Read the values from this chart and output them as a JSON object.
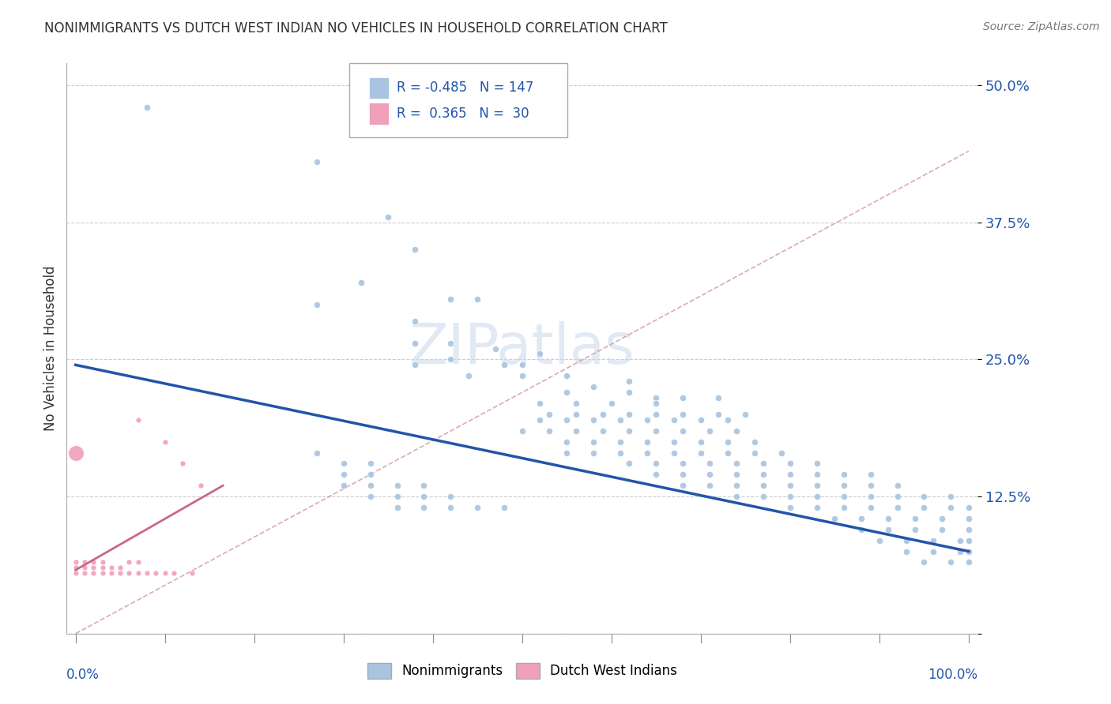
{
  "title": "NONIMMIGRANTS VS DUTCH WEST INDIAN NO VEHICLES IN HOUSEHOLD CORRELATION CHART",
  "source": "Source: ZipAtlas.com",
  "ylabel": "No Vehicles in Household",
  "blue_color": "#a8c4e0",
  "pink_color": "#f0a0b8",
  "blue_line_color": "#2255aa",
  "pink_line_color": "#cc6688",
  "dashed_line_color": "#cc8888",
  "grid_color": "#cccccc",
  "watermark": "ZIPatlas",
  "blue_scatter": [
    [
      0.08,
      0.48
    ],
    [
      0.27,
      0.43
    ],
    [
      0.35,
      0.38
    ],
    [
      0.38,
      0.35
    ],
    [
      0.32,
      0.32
    ],
    [
      0.42,
      0.305
    ],
    [
      0.45,
      0.305
    ],
    [
      0.27,
      0.3
    ],
    [
      0.38,
      0.285
    ],
    [
      0.42,
      0.265
    ],
    [
      0.38,
      0.265
    ],
    [
      0.42,
      0.25
    ],
    [
      0.38,
      0.245
    ],
    [
      0.44,
      0.235
    ],
    [
      0.47,
      0.26
    ],
    [
      0.48,
      0.245
    ],
    [
      0.5,
      0.245
    ],
    [
      0.52,
      0.255
    ],
    [
      0.5,
      0.235
    ],
    [
      0.55,
      0.235
    ],
    [
      0.55,
      0.22
    ],
    [
      0.58,
      0.225
    ],
    [
      0.62,
      0.23
    ],
    [
      0.62,
      0.22
    ],
    [
      0.65,
      0.215
    ],
    [
      0.52,
      0.21
    ],
    [
      0.56,
      0.21
    ],
    [
      0.6,
      0.21
    ],
    [
      0.65,
      0.21
    ],
    [
      0.68,
      0.215
    ],
    [
      0.72,
      0.215
    ],
    [
      0.53,
      0.2
    ],
    [
      0.56,
      0.2
    ],
    [
      0.59,
      0.2
    ],
    [
      0.62,
      0.2
    ],
    [
      0.65,
      0.2
    ],
    [
      0.68,
      0.2
    ],
    [
      0.72,
      0.2
    ],
    [
      0.75,
      0.2
    ],
    [
      0.52,
      0.195
    ],
    [
      0.55,
      0.195
    ],
    [
      0.58,
      0.195
    ],
    [
      0.61,
      0.195
    ],
    [
      0.64,
      0.195
    ],
    [
      0.67,
      0.195
    ],
    [
      0.7,
      0.195
    ],
    [
      0.73,
      0.195
    ],
    [
      0.5,
      0.185
    ],
    [
      0.53,
      0.185
    ],
    [
      0.56,
      0.185
    ],
    [
      0.59,
      0.185
    ],
    [
      0.62,
      0.185
    ],
    [
      0.65,
      0.185
    ],
    [
      0.68,
      0.185
    ],
    [
      0.71,
      0.185
    ],
    [
      0.74,
      0.185
    ],
    [
      0.55,
      0.175
    ],
    [
      0.58,
      0.175
    ],
    [
      0.61,
      0.175
    ],
    [
      0.64,
      0.175
    ],
    [
      0.67,
      0.175
    ],
    [
      0.7,
      0.175
    ],
    [
      0.73,
      0.175
    ],
    [
      0.76,
      0.175
    ],
    [
      0.55,
      0.165
    ],
    [
      0.58,
      0.165
    ],
    [
      0.61,
      0.165
    ],
    [
      0.64,
      0.165
    ],
    [
      0.67,
      0.165
    ],
    [
      0.7,
      0.165
    ],
    [
      0.73,
      0.165
    ],
    [
      0.76,
      0.165
    ],
    [
      0.79,
      0.165
    ],
    [
      0.62,
      0.155
    ],
    [
      0.65,
      0.155
    ],
    [
      0.68,
      0.155
    ],
    [
      0.71,
      0.155
    ],
    [
      0.74,
      0.155
    ],
    [
      0.77,
      0.155
    ],
    [
      0.8,
      0.155
    ],
    [
      0.83,
      0.155
    ],
    [
      0.65,
      0.145
    ],
    [
      0.68,
      0.145
    ],
    [
      0.71,
      0.145
    ],
    [
      0.74,
      0.145
    ],
    [
      0.77,
      0.145
    ],
    [
      0.8,
      0.145
    ],
    [
      0.83,
      0.145
    ],
    [
      0.86,
      0.145
    ],
    [
      0.89,
      0.145
    ],
    [
      0.68,
      0.135
    ],
    [
      0.71,
      0.135
    ],
    [
      0.74,
      0.135
    ],
    [
      0.77,
      0.135
    ],
    [
      0.8,
      0.135
    ],
    [
      0.83,
      0.135
    ],
    [
      0.86,
      0.135
    ],
    [
      0.89,
      0.135
    ],
    [
      0.92,
      0.135
    ],
    [
      0.74,
      0.125
    ],
    [
      0.77,
      0.125
    ],
    [
      0.8,
      0.125
    ],
    [
      0.83,
      0.125
    ],
    [
      0.86,
      0.125
    ],
    [
      0.89,
      0.125
    ],
    [
      0.92,
      0.125
    ],
    [
      0.95,
      0.125
    ],
    [
      0.98,
      0.125
    ],
    [
      0.8,
      0.115
    ],
    [
      0.83,
      0.115
    ],
    [
      0.86,
      0.115
    ],
    [
      0.89,
      0.115
    ],
    [
      0.92,
      0.115
    ],
    [
      0.95,
      0.115
    ],
    [
      0.98,
      0.115
    ],
    [
      1.0,
      0.115
    ],
    [
      0.85,
      0.105
    ],
    [
      0.88,
      0.105
    ],
    [
      0.91,
      0.105
    ],
    [
      0.94,
      0.105
    ],
    [
      0.97,
      0.105
    ],
    [
      1.0,
      0.105
    ],
    [
      0.88,
      0.095
    ],
    [
      0.91,
      0.095
    ],
    [
      0.94,
      0.095
    ],
    [
      0.97,
      0.095
    ],
    [
      1.0,
      0.095
    ],
    [
      0.9,
      0.085
    ],
    [
      0.93,
      0.085
    ],
    [
      0.96,
      0.085
    ],
    [
      0.99,
      0.085
    ],
    [
      1.0,
      0.085
    ],
    [
      0.93,
      0.075
    ],
    [
      0.96,
      0.075
    ],
    [
      0.99,
      0.075
    ],
    [
      1.0,
      0.075
    ],
    [
      0.95,
      0.065
    ],
    [
      0.98,
      0.065
    ],
    [
      1.0,
      0.065
    ],
    [
      0.27,
      0.165
    ],
    [
      0.3,
      0.155
    ],
    [
      0.33,
      0.155
    ],
    [
      0.3,
      0.145
    ],
    [
      0.33,
      0.145
    ],
    [
      0.3,
      0.135
    ],
    [
      0.33,
      0.135
    ],
    [
      0.36,
      0.135
    ],
    [
      0.39,
      0.135
    ],
    [
      0.33,
      0.125
    ],
    [
      0.36,
      0.125
    ],
    [
      0.39,
      0.125
    ],
    [
      0.42,
      0.125
    ],
    [
      0.36,
      0.115
    ],
    [
      0.39,
      0.115
    ],
    [
      0.42,
      0.115
    ],
    [
      0.45,
      0.115
    ],
    [
      0.48,
      0.115
    ]
  ],
  "pink_scatter": [
    [
      0.0,
      0.055
    ],
    [
      0.0,
      0.06
    ],
    [
      0.0,
      0.065
    ],
    [
      0.01,
      0.055
    ],
    [
      0.01,
      0.06
    ],
    [
      0.01,
      0.065
    ],
    [
      0.02,
      0.055
    ],
    [
      0.02,
      0.06
    ],
    [
      0.02,
      0.065
    ],
    [
      0.03,
      0.055
    ],
    [
      0.03,
      0.06
    ],
    [
      0.03,
      0.065
    ],
    [
      0.04,
      0.055
    ],
    [
      0.04,
      0.06
    ],
    [
      0.05,
      0.055
    ],
    [
      0.05,
      0.06
    ],
    [
      0.06,
      0.055
    ],
    [
      0.06,
      0.065
    ],
    [
      0.07,
      0.055
    ],
    [
      0.07,
      0.065
    ],
    [
      0.08,
      0.055
    ],
    [
      0.09,
      0.055
    ],
    [
      0.1,
      0.055
    ],
    [
      0.11,
      0.055
    ],
    [
      0.13,
      0.055
    ],
    [
      0.0,
      0.165
    ],
    [
      0.07,
      0.195
    ],
    [
      0.1,
      0.175
    ],
    [
      0.12,
      0.155
    ],
    [
      0.14,
      0.135
    ]
  ],
  "blue_size": 35,
  "pink_size_small": 25,
  "pink_size_large": 200,
  "blue_line": [
    [
      0.0,
      0.245
    ],
    [
      1.0,
      0.075
    ]
  ],
  "pink_line": [
    [
      0.0,
      0.058
    ],
    [
      0.165,
      0.135
    ]
  ],
  "dashed_line": [
    [
      0.0,
      0.0
    ],
    [
      1.0,
      0.44
    ]
  ],
  "ylim": [
    0.0,
    0.52
  ],
  "xlim": [
    -0.01,
    1.01
  ],
  "ytick_vals": [
    0.0,
    0.125,
    0.25,
    0.375,
    0.5
  ],
  "ytick_labels": [
    "",
    "12.5%",
    "25.0%",
    "37.5%",
    "50.0%"
  ]
}
